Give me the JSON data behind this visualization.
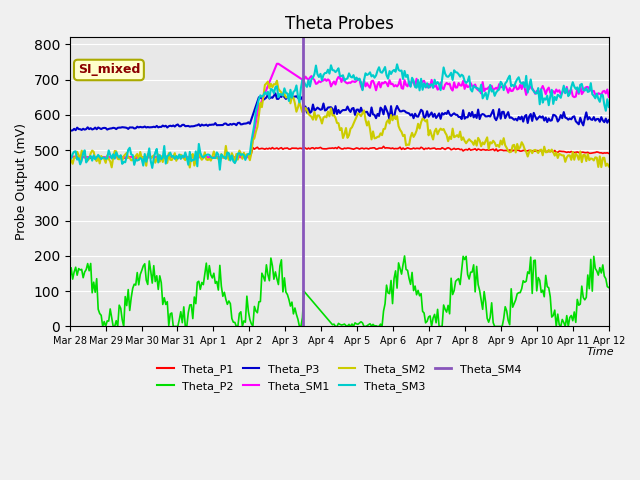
{
  "title": "Theta Probes",
  "ylabel": "Probe Output (mV)",
  "xlabel": "Time",
  "background_color": "#e8e8e8",
  "ylim": [
    0,
    820
  ],
  "yticks": [
    0,
    100,
    200,
    300,
    400,
    500,
    600,
    700,
    800
  ],
  "vertical_line_day": 6.5,
  "annotation_text": "SI_mixed",
  "series_colors": {
    "Theta_P1": "#ff0000",
    "Theta_P2": "#00dd00",
    "Theta_P3": "#0000cc",
    "Theta_SM1": "#ff00ff",
    "Theta_SM2": "#cccc00",
    "Theta_SM3": "#00cccc",
    "Theta_SM4": "#8855bb"
  },
  "xtick_labels": [
    "Mar 28",
    "Mar 29",
    "Mar 30",
    "Mar 31",
    "Apr 1",
    "Apr 2",
    "Apr 3",
    "Apr 4",
    "Apr 5",
    "Apr 6",
    "Apr 7",
    "Apr 8",
    "Apr 9",
    "Apr 10",
    "Apr 11",
    "Apr 12"
  ]
}
